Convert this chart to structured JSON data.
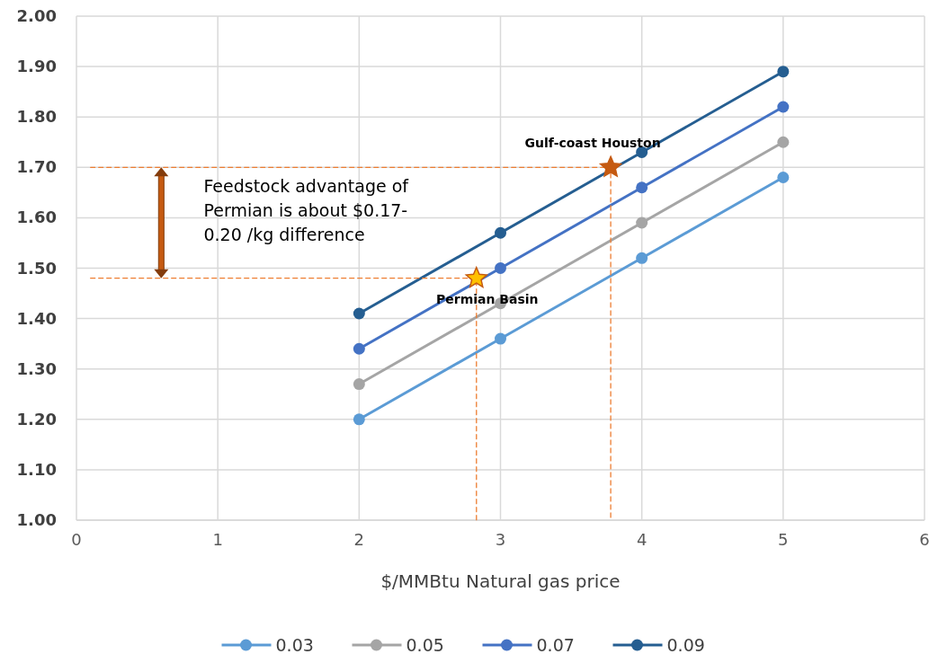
{
  "chart_data": {
    "type": "line",
    "xlabel": "$/MMBtu Natural gas price",
    "x": [
      2,
      3,
      4,
      5
    ],
    "series": [
      {
        "name": "0.03",
        "color": "#5b9bd5",
        "values": [
          1.2,
          1.36,
          1.52,
          1.68
        ]
      },
      {
        "name": "0.05",
        "color": "#a5a5a5",
        "values": [
          1.27,
          1.43,
          1.59,
          1.75
        ]
      },
      {
        "name": "0.07",
        "color": "#4472c4",
        "values": [
          1.34,
          1.5,
          1.66,
          1.82
        ]
      },
      {
        "name": "0.09",
        "color": "#255e91",
        "values": [
          1.41,
          1.57,
          1.73,
          1.89
        ]
      },
      {
        "type": "line",
        "color": "#ed7d31",
        "line_style": "dashed",
        "marker": "none",
        "x": [
          0.1,
          2.83,
          2.83
        ],
        "values": [
          1.48,
          1.48,
          1.0
        ]
      },
      {
        "type": "line",
        "color": "#ed7d31",
        "line_style": "dashed",
        "marker": "none",
        "x": [
          0.1,
          3.78,
          3.78
        ],
        "values": [
          1.7,
          1.7,
          1.0
        ]
      },
      {
        "type": "scatter",
        "marker": "star",
        "x": [
          2.83,
          3.78
        ],
        "values": [
          1.48,
          1.7
        ],
        "colors": [
          "#ffc000",
          "#c55a11"
        ]
      }
    ],
    "xlim": [
      0,
      6
    ],
    "xticks": [
      0,
      1,
      2,
      3,
      4,
      5,
      6
    ],
    "ylim": [
      1,
      2
    ],
    "yticks": [
      {
        "value": 1,
        "label": "1.00"
      },
      {
        "value": 1.1,
        "label": "1.10"
      },
      {
        "value": 1.2,
        "label": "1.20"
      },
      {
        "value": 1.3,
        "label": "1.30"
      },
      {
        "value": 1.4,
        "label": "1.40"
      },
      {
        "value": 1.5,
        "label": "1.50"
      },
      {
        "value": 1.6,
        "label": "1.60"
      },
      {
        "value": 1.7,
        "label": "1.70"
      },
      {
        "value": 1.8,
        "label": "1.80"
      },
      {
        "value": 1.9,
        "label": "1.90"
      },
      {
        "value": 2,
        "label": "2.00"
      }
    ],
    "grid": true,
    "marker": "circle",
    "line_style": "solid",
    "legend": "bottom",
    "annotations": [
      {
        "text": "Permian Basin",
        "x": 2.83,
        "y": 1.48
      },
      {
        "text": "Gulf-coast Houston",
        "x": 3.78,
        "y": 1.7
      },
      "Feedstock advantage of Permian is about $0.17-0.20 /kg difference"
    ]
  }
}
